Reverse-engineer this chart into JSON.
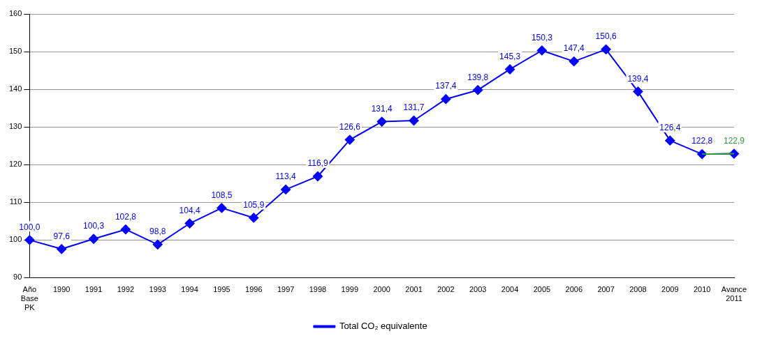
{
  "chart_data": {
    "type": "line",
    "categories": [
      "Año\nBase\nPK",
      "1990",
      "1991",
      "1992",
      "1993",
      "1994",
      "1995",
      "1996",
      "1997",
      "1998",
      "1999",
      "2000",
      "2001",
      "2002",
      "2003",
      "2004",
      "2005",
      "2006",
      "2007",
      "2008",
      "2009",
      "2010",
      "Avance\n2011"
    ],
    "series": [
      {
        "name": "Total CO₂ equivalente",
        "color": "#0000ff",
        "values": [
          100.0,
          97.6,
          100.3,
          102.8,
          98.8,
          104.4,
          108.5,
          105.9,
          113.4,
          116.9,
          126.6,
          131.4,
          131.7,
          137.4,
          139.8,
          145.3,
          150.3,
          147.4,
          150.6,
          139.4,
          126.4,
          122.8,
          122.9
        ],
        "value_labels": [
          "100,0",
          "97,6",
          "100,3",
          "102,8",
          "98,8",
          "104,4",
          "108,5",
          "105,9",
          "113,4",
          "116,9",
          "126,6",
          "131,4",
          "131,7",
          "137,4",
          "139,8",
          "145,3",
          "150,3",
          "147,4",
          "150,6",
          "139,4",
          "126,4",
          "122,8",
          null
        ]
      },
      {
        "type": "line",
        "color": "#339933",
        "marker": "none",
        "values": [
          null,
          null,
          null,
          null,
          null,
          null,
          null,
          null,
          null,
          null,
          null,
          null,
          null,
          null,
          null,
          null,
          null,
          null,
          null,
          null,
          null,
          122.8,
          122.9
        ],
        "value_labels": [
          null,
          null,
          null,
          null,
          null,
          null,
          null,
          null,
          null,
          null,
          null,
          null,
          null,
          null,
          null,
          null,
          null,
          null,
          null,
          null,
          null,
          null,
          "122,9"
        ]
      }
    ],
    "ylim": [
      90,
      160
    ],
    "yticks": [
      90,
      100,
      110,
      120,
      130,
      140,
      150,
      160
    ],
    "grid": "y",
    "marker": "diamond",
    "line_style": "solid",
    "legend": "bottom"
  }
}
